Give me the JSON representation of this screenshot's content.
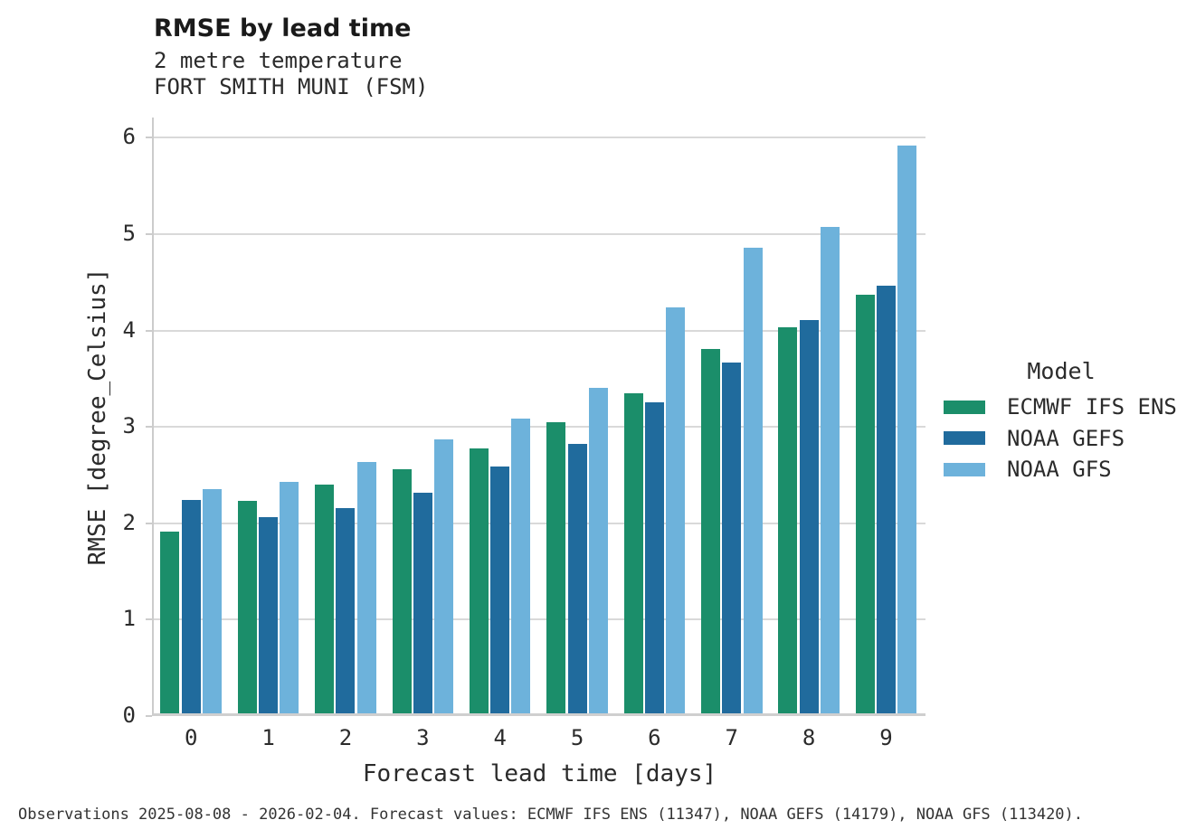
{
  "header": {
    "title": "RMSE by lead time",
    "subtitle1": "2 metre temperature",
    "subtitle2": "FORT SMITH MUNI (FSM)"
  },
  "legend": {
    "title": "Model",
    "entries": [
      {
        "label": "ECMWF IFS ENS",
        "color": "#1b8e6a"
      },
      {
        "label": "NOAA GEFS",
        "color": "#206b9d"
      },
      {
        "label": "NOAA GFS",
        "color": "#6db2db"
      }
    ]
  },
  "caption": "Observations 2025-08-08 - 2026-02-04. Forecast values: ECMWF IFS ENS (11347), NOAA GEFS (14179), NOAA GFS (113420).",
  "chart_data": {
    "type": "bar",
    "title": "RMSE by lead time",
    "subtitle": [
      "2 metre temperature",
      "FORT SMITH MUNI (FSM)"
    ],
    "xlabel": "Forecast lead time [days]",
    "ylabel": "RMSE [degree_Celsius]",
    "categories": [
      "0",
      "1",
      "2",
      "3",
      "4",
      "5",
      "6",
      "7",
      "8",
      "9"
    ],
    "series": [
      {
        "name": "ECMWF IFS ENS",
        "color": "#1b8e6a",
        "values": [
          1.89,
          2.2,
          2.37,
          2.53,
          2.75,
          3.02,
          3.32,
          3.78,
          4.01,
          4.34
        ]
      },
      {
        "name": "NOAA GEFS",
        "color": "#206b9d",
        "values": [
          2.21,
          2.04,
          2.13,
          2.29,
          2.56,
          2.8,
          3.23,
          3.64,
          4.08,
          4.44
        ]
      },
      {
        "name": "NOAA GFS",
        "color": "#6db2db",
        "values": [
          2.33,
          2.4,
          2.61,
          2.84,
          3.06,
          3.38,
          4.21,
          4.83,
          5.05,
          5.89
        ]
      }
    ],
    "ylim": [
      0,
      6.21
    ],
    "yticks": [
      0,
      1,
      2,
      3,
      4,
      5,
      6
    ],
    "grid": true,
    "legend_title": "Model",
    "legend_position": "right",
    "grid_color": "#d9d9d9",
    "spine_color": "#cccccc"
  }
}
